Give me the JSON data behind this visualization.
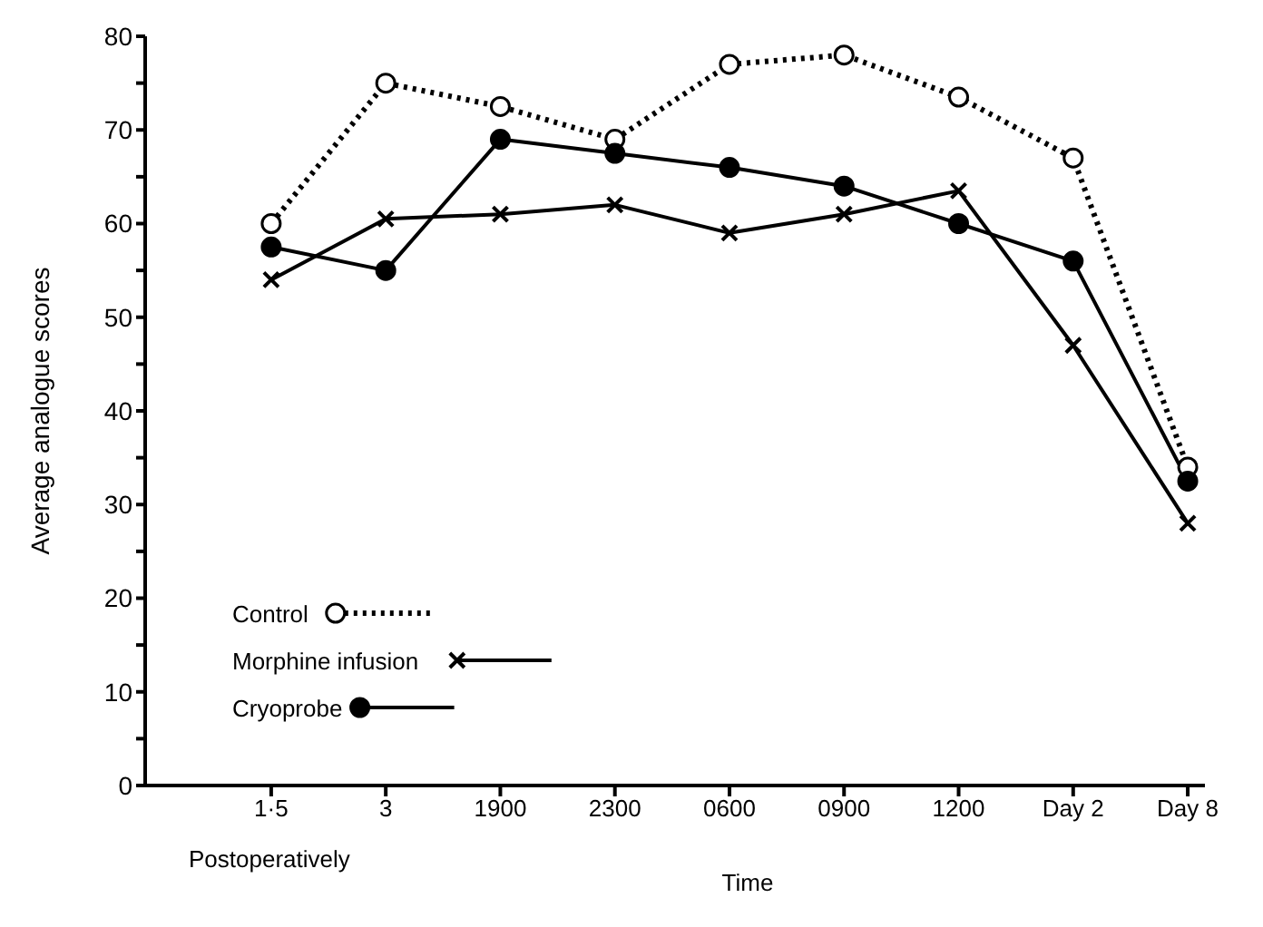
{
  "chart_data": {
    "type": "line",
    "xlabel": "Time",
    "ylabel": "Average analogue scores",
    "categories": [
      "1·5",
      "3",
      "1900",
      "2300",
      "0600",
      "0900",
      "1200",
      "Day 2",
      "Day 8"
    ],
    "series": [
      {
        "name": "Control",
        "color": "#000000",
        "marker": "circle",
        "line_style": "dotted",
        "values": [
          60,
          75,
          72.5,
          69,
          77,
          78,
          73.5,
          67,
          34
        ]
      },
      {
        "name": "Morphine infusion",
        "color": "#000000",
        "marker": "cross",
        "line_style": "solid",
        "values": [
          54,
          60.5,
          61,
          62,
          59,
          61,
          63.5,
          47,
          28
        ]
      },
      {
        "name": "Cryoprobe",
        "color": "#000000",
        "marker": "circle",
        "line_style": "solid",
        "values": [
          57.5,
          55,
          69,
          67.5,
          66,
          64,
          60,
          56,
          32.5
        ]
      }
    ],
    "ylim": [
      0,
      80
    ],
    "yticks": [
      0,
      {
        "value": 5,
        "label": null
      },
      10,
      {
        "value": 15,
        "label": null
      },
      20,
      {
        "value": 25,
        "label": null
      },
      30,
      {
        "value": 35,
        "label": null
      },
      40,
      {
        "value": 45,
        "label": null
      },
      50,
      {
        "value": 55,
        "label": null
      },
      60,
      {
        "value": 65,
        "label": null
      },
      70,
      {
        "value": 75,
        "label": null
      },
      80
    ],
    "annotations": [
      "Postoperatively"
    ],
    "legend": "left",
    "grid": false
  }
}
